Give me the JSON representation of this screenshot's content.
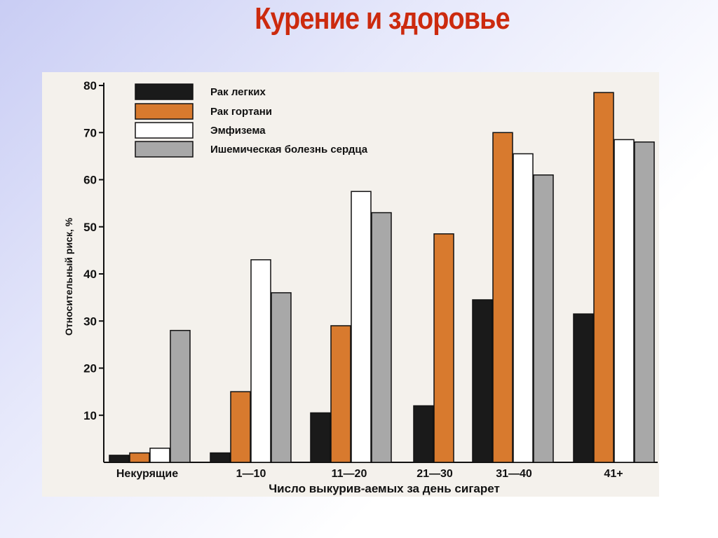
{
  "slide": {
    "title": "Курение и здоровье"
  },
  "chart_data": {
    "type": "bar",
    "categories": [
      "Некурящие",
      "1—10",
      "11—20",
      "21—30",
      "31—40",
      "41+"
    ],
    "series": [
      {
        "name": "Рак легких",
        "color": "#1a1a1a",
        "values": [
          1.5,
          2,
          10.5,
          12,
          34.5,
          31.5
        ]
      },
      {
        "name": "Рак гортани",
        "color": "#d87a2e",
        "values": [
          2,
          15,
          29,
          48.5,
          70,
          78.5
        ]
      },
      {
        "name": "Эмфизема",
        "color": "#ffffff",
        "values": [
          3,
          43,
          57.5,
          null,
          65.5,
          68.5
        ]
      },
      {
        "name": "Ишемическая болезнь сердца",
        "color": "#a8a8a8",
        "values": [
          28,
          36,
          53,
          null,
          61,
          68
        ]
      }
    ],
    "xlabel": "Число выкурив-аемых за день сигарет",
    "ylabel": "Относительный риск, %",
    "ylim": [
      0,
      80
    ],
    "yticks": [
      10,
      20,
      30,
      40,
      50,
      60,
      70,
      80
    ],
    "grid": false,
    "legend_position": "top-left"
  }
}
